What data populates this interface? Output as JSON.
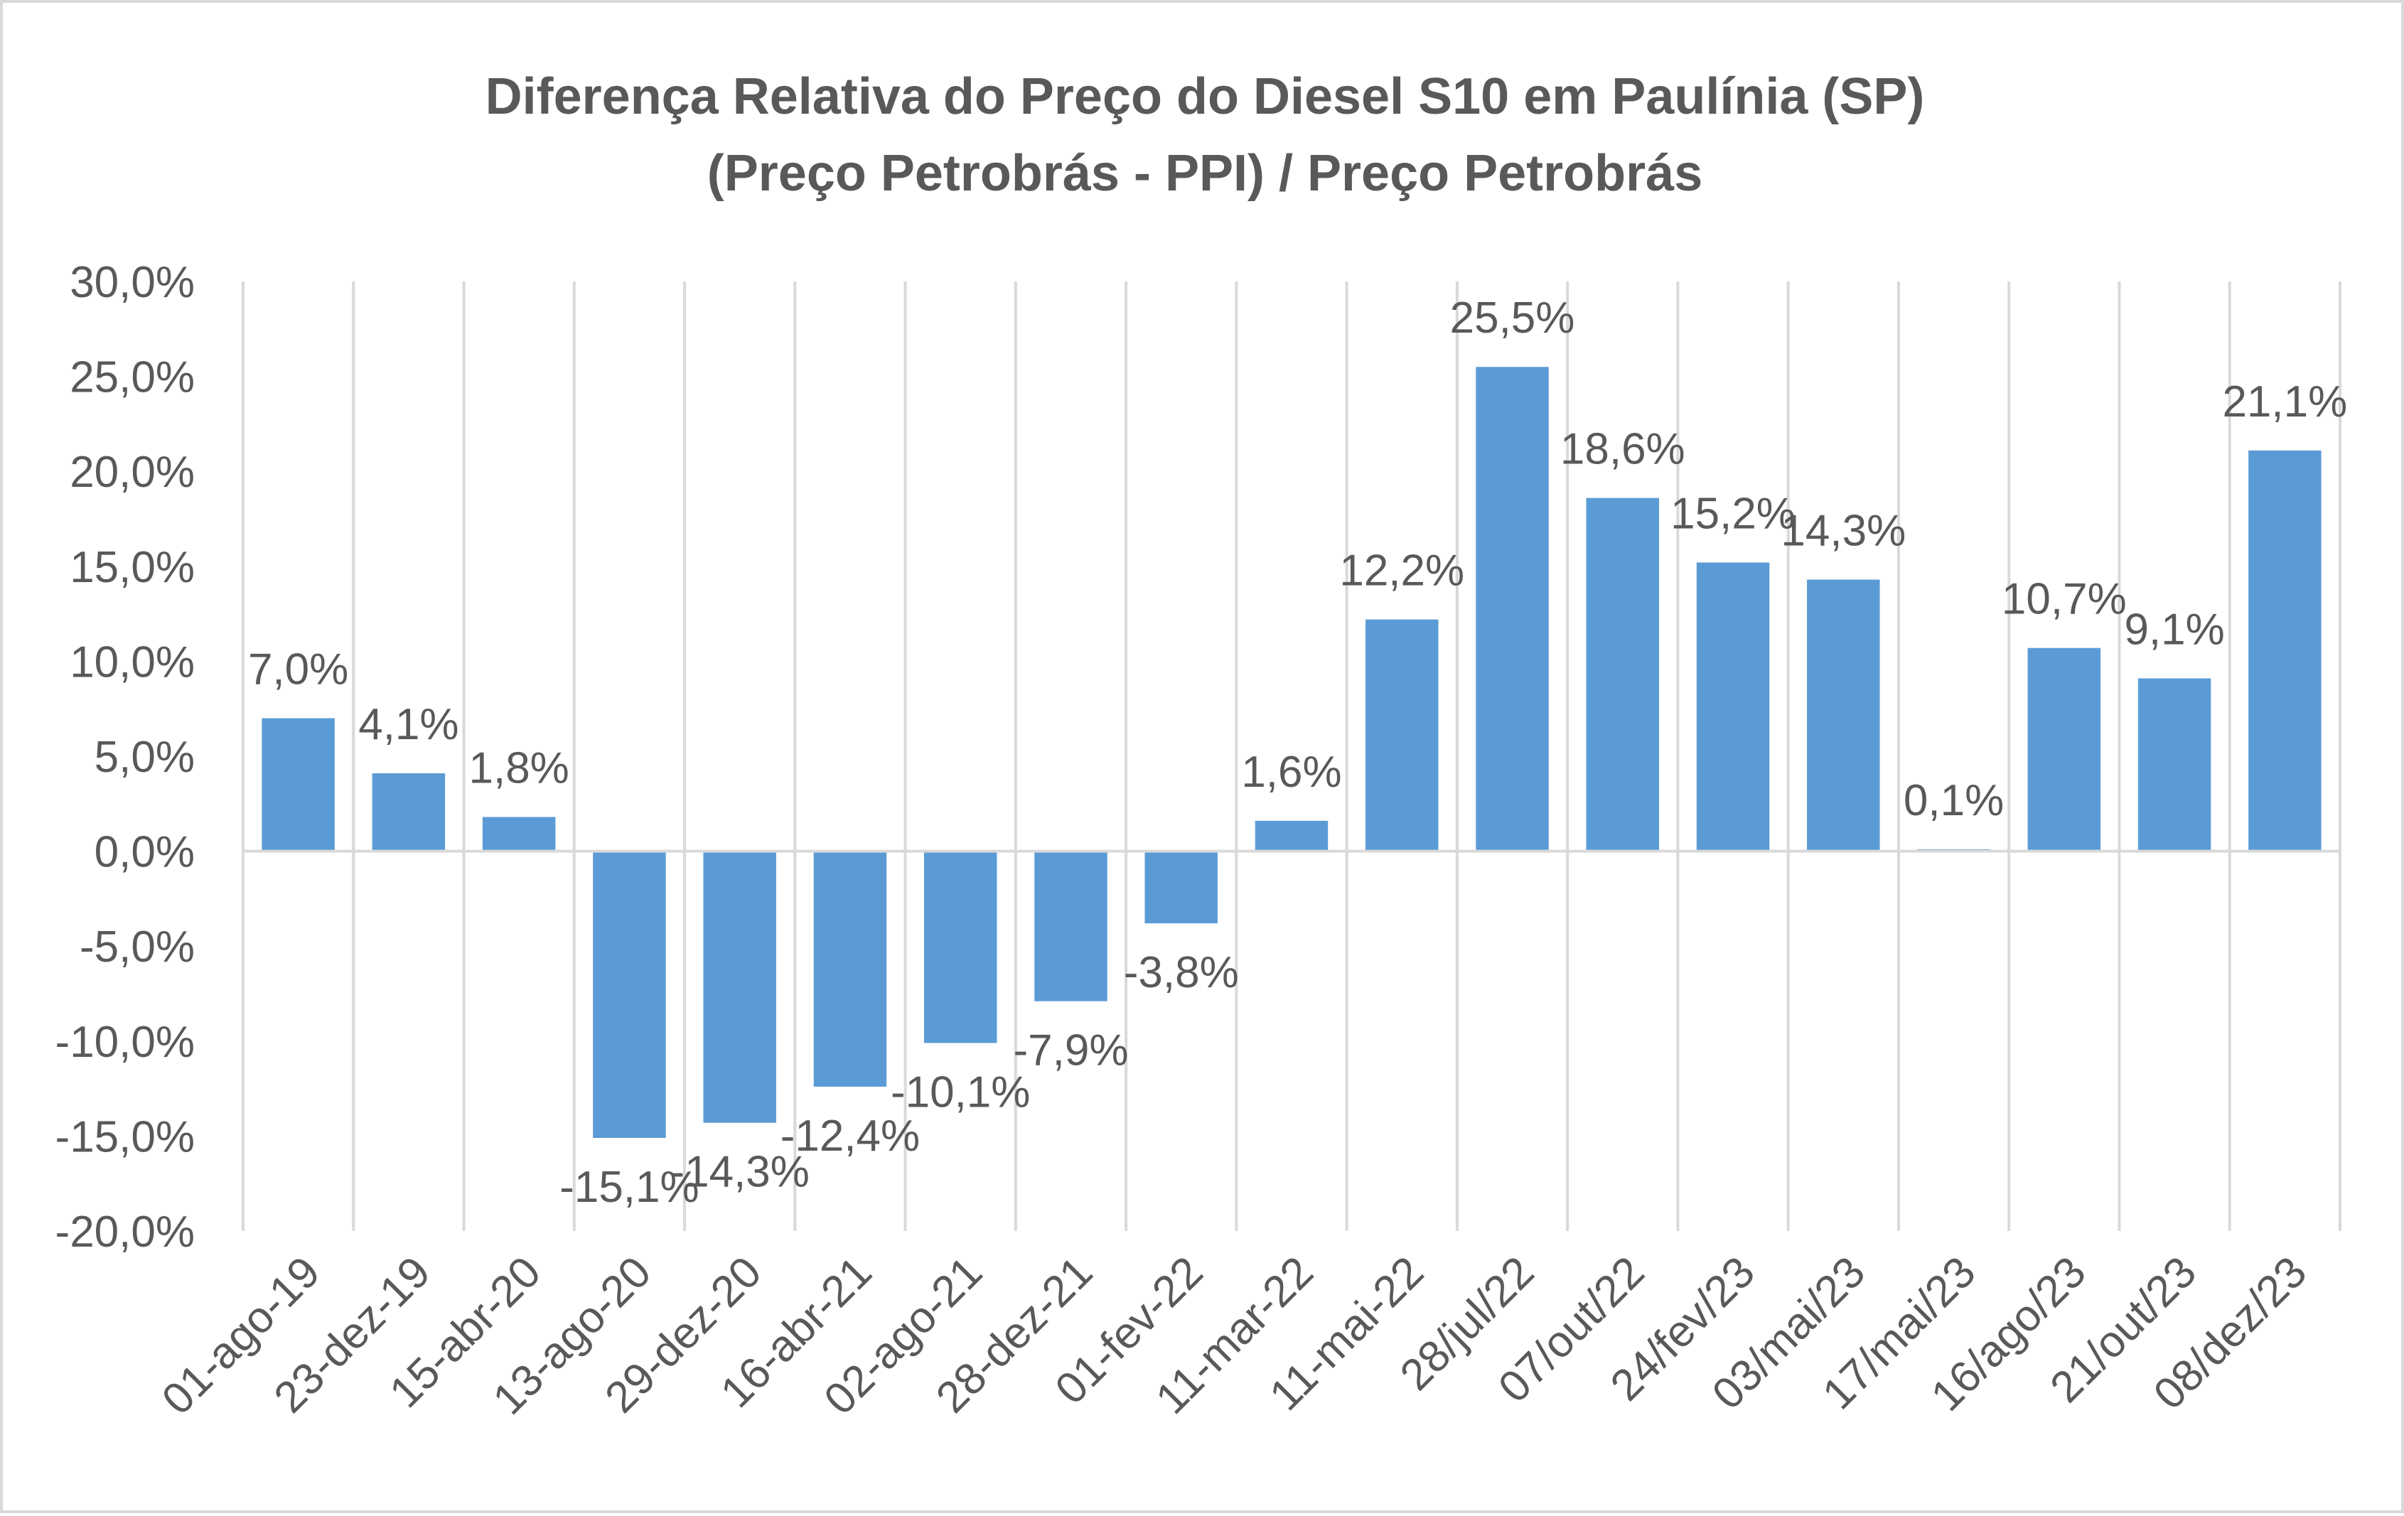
{
  "colors": {
    "bar": "#5b9bd5",
    "grid": "#d9d9d9",
    "text": "#595959",
    "title": "#595959"
  },
  "chart_data": {
    "type": "bar",
    "title": "Diferença Relativa do Preço do Diesel S10 em Paulínia (SP)",
    "subtitle": "(Preço Petrobrás - PPI) / Preço Petrobrás",
    "categories": [
      "01-ago-19",
      "23-dez-19",
      "15-abr-20",
      "13-ago-20",
      "29-dez-20",
      "16-abr-21",
      "02-ago-21",
      "28-dez-21",
      "01-fev-22",
      "11-mar-22",
      "11-mai-22",
      "28/jul/22",
      "07/out/22",
      "24/fev/23",
      "03/mai/23",
      "17/mai/23",
      "16/ago/23",
      "21/out/23",
      "08/dez/23"
    ],
    "values": [
      7.0,
      4.1,
      1.8,
      -15.1,
      -14.3,
      -12.4,
      -10.1,
      -7.9,
      -3.8,
      1.6,
      12.2,
      25.5,
      18.6,
      15.2,
      14.3,
      0.1,
      10.7,
      9.1,
      21.1
    ],
    "data_labels": [
      "7,0%",
      "4,1%",
      "1,8%",
      "-15,1%",
      "-14,3%",
      "-12,4%",
      "-10,1%",
      "-7,9%",
      "-3,8%",
      "1,6%",
      "12,2%",
      "25,5%",
      "18,6%",
      "15,2%",
      "14,3%",
      "0,1%",
      "10,7%",
      "9,1%",
      "21,1%"
    ],
    "ylim": [
      -20,
      30
    ],
    "yticks": [
      30,
      25,
      20,
      15,
      10,
      5,
      0,
      -5,
      -10,
      -15,
      -20
    ],
    "ytick_labels": [
      "30,0%",
      "25,0%",
      "20,0%",
      "15,0%",
      "10,0%",
      "5,0%",
      "0,0%",
      "-5,0%",
      "-10,0%",
      "-15,0%",
      "-20,0%"
    ],
    "xlabel": "",
    "ylabel": "",
    "grid": "vertical",
    "legend": "none"
  }
}
